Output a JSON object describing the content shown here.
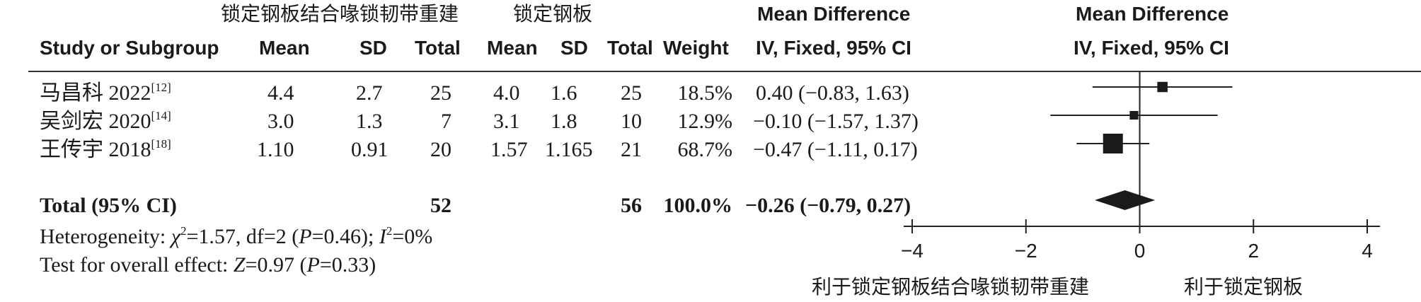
{
  "headers": {
    "group_experimental": "锁定钢板结合喙锁韧带重建",
    "group_control": "锁定钢板",
    "md_title": "Mean Difference",
    "md_method": "IV, Fixed, 95% CI",
    "plot_title": "Mean Difference",
    "plot_method": "IV, Fixed, 95% CI",
    "study": "Study or Subgroup",
    "mean_e": "Mean",
    "sd_e": "SD",
    "total_e": "Total",
    "mean_c": "Mean",
    "sd_c": "SD",
    "total_c": "Total",
    "weight": "Weight"
  },
  "studies": [
    {
      "name": "马昌科 2022",
      "ref": "[12]",
      "mean_e": "4.4",
      "sd_e": "2.7",
      "total_e": "25",
      "mean_c": "4.0",
      "sd_c": "1.6",
      "total_c": "25",
      "weight": "18.5%",
      "ci_text": "0.40 (−0.83, 1.63)"
    },
    {
      "name": "吴剑宏 2020",
      "ref": "[14]",
      "mean_e": "3.0",
      "sd_e": "1.3",
      "total_e": "7",
      "mean_c": "3.1",
      "sd_c": "1.8",
      "total_c": "10",
      "weight": "12.9%",
      "ci_text": "−0.10 (−1.57, 1.37)"
    },
    {
      "name": "王传宇 2018",
      "ref": "[18]",
      "mean_e": "1.10",
      "sd_e": "0.91",
      "total_e": "20",
      "mean_c": "1.57",
      "sd_c": "1.165",
      "total_c": "21",
      "weight": "68.7%",
      "ci_text": "−0.47 (−1.11, 0.17)"
    }
  ],
  "total": {
    "label": "Total (95% CI)",
    "total_e": "52",
    "total_c": "56",
    "weight": "100.0%",
    "ci_text": "−0.26 (−0.79, 0.27)"
  },
  "heterogeneity": {
    "prefix": "Heterogeneity: ",
    "chi": "χ",
    "chi_rest": "=1.57, df=2 (",
    "p": "P",
    "p_rest": "=0.46); ",
    "i": "I",
    "i_rest": "=0%"
  },
  "overall": {
    "prefix": "Test for overall effect: ",
    "z": "Z",
    "z_rest": "=0.97 (",
    "p": "P",
    "p_rest": "=0.33)"
  },
  "axis_labels": {
    "favours_left": "利于锁定钢板结合喙锁韧带重建",
    "favours_right": "利于锁定钢板"
  },
  "chart_data": {
    "type": "forest",
    "x_range": [
      -4,
      4
    ],
    "ticks": [
      -4,
      -2,
      0,
      2,
      4
    ],
    "null_line": 0,
    "studies": [
      {
        "md": 0.4,
        "ci": [
          -0.83,
          1.63
        ],
        "weight": 18.5
      },
      {
        "md": -0.1,
        "ci": [
          -1.57,
          1.37
        ],
        "weight": 12.9
      },
      {
        "md": -0.47,
        "ci": [
          -1.11,
          0.17
        ],
        "weight": 68.7
      }
    ],
    "pooled": {
      "md": -0.26,
      "ci": [
        -0.79,
        0.27
      ]
    }
  }
}
